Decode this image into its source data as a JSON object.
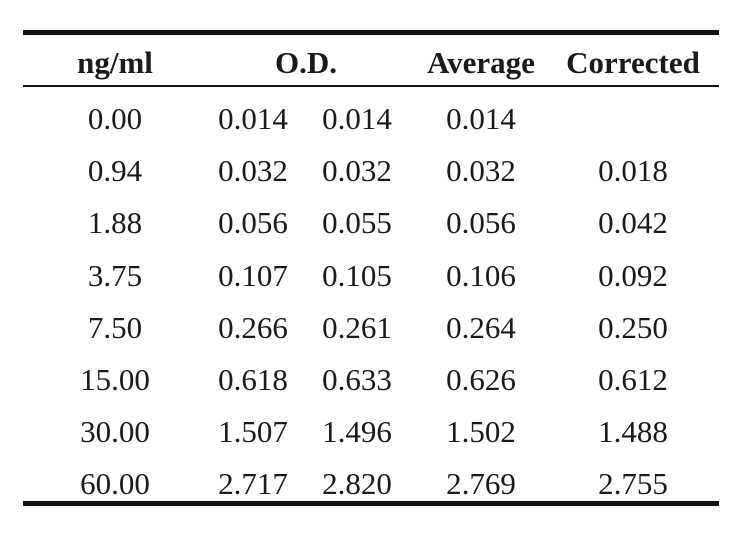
{
  "table": {
    "headers": {
      "ng": "ng/ml",
      "od": "O.D.",
      "average": "Average",
      "corrected": "Corrected"
    },
    "rows": [
      {
        "ng": "0.00",
        "od1": "0.014",
        "od2": "0.014",
        "average": "0.014",
        "corrected": ""
      },
      {
        "ng": "0.94",
        "od1": "0.032",
        "od2": "0.032",
        "average": "0.032",
        "corrected": "0.018"
      },
      {
        "ng": "1.88",
        "od1": "0.056",
        "od2": "0.055",
        "average": "0.056",
        "corrected": "0.042"
      },
      {
        "ng": "3.75",
        "od1": "0.107",
        "od2": "0.105",
        "average": "0.106",
        "corrected": "0.092"
      },
      {
        "ng": "7.50",
        "od1": "0.266",
        "od2": "0.261",
        "average": "0.264",
        "corrected": "0.250"
      },
      {
        "ng": "15.00",
        "od1": "0.618",
        "od2": "0.633",
        "average": "0.626",
        "corrected": "0.612"
      },
      {
        "ng": "30.00",
        "od1": "1.507",
        "od2": "1.496",
        "average": "1.502",
        "corrected": "1.488"
      },
      {
        "ng": "60.00",
        "od1": "2.717",
        "od2": "2.820",
        "average": "2.769",
        "corrected": "2.755"
      }
    ]
  }
}
